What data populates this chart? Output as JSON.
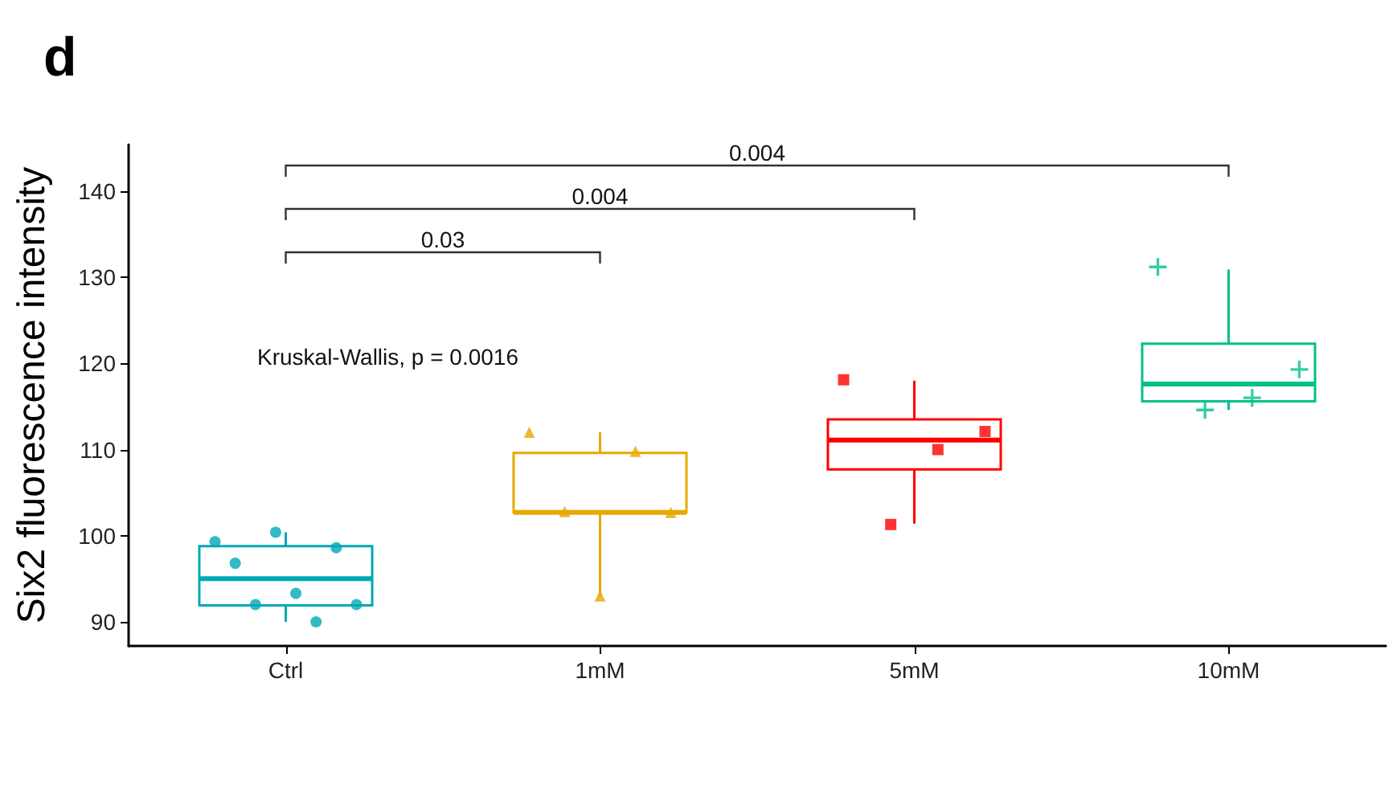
{
  "chart_data": {
    "type": "box",
    "title": "d",
    "ylabel": "Six2 fluorescence intensity",
    "categories": [
      "Ctrl",
      "1mM",
      "5mM",
      "10mM"
    ],
    "ylim": [
      87.2,
      145.4
    ],
    "yticks": [
      90,
      100,
      110,
      120,
      130,
      140
    ],
    "annotations": [
      "0.03",
      "0.004",
      "0.004",
      "Kruskal-Wallis, p = 0.0016"
    ],
    "series": [
      {
        "colors": [
          "#00a9b5",
          "#e7a800",
          "#ff0000",
          "#00c08b"
        ],
        "boxes": [
          {
            "low": 90.0,
            "q1": 91.9,
            "median": 95.0,
            "q3": 98.8,
            "high": 100.4
          },
          {
            "low": 93.0,
            "q1": 102.7,
            "median": 102.7,
            "q3": 109.6,
            "high": 112.0
          },
          {
            "low": 101.4,
            "q1": 107.7,
            "median": 111.1,
            "q3": 113.5,
            "high": 118.0
          },
          {
            "low": 114.6,
            "q1": 115.6,
            "median": 117.6,
            "q3": 122.3,
            "high": 130.9
          }
        ]
      },
      {
        "type": "scatter",
        "color": "#00a9b5",
        "marker": "circle",
        "x": [
          "Ctrl",
          "Ctrl",
          "Ctrl",
          "Ctrl",
          "Ctrl",
          "Ctrl",
          "Ctrl",
          "Ctrl"
        ],
        "values": [
          99.3,
          100.4,
          98.6,
          96.8,
          93.3,
          92.0,
          92.0,
          90.0
        ]
      },
      {
        "type": "scatter",
        "color": "#e7a800",
        "marker": "triangle",
        "x": [
          "1mM",
          "1mM",
          "1mM",
          "1mM",
          "1mM"
        ],
        "values": [
          112.0,
          109.8,
          102.8,
          102.7,
          93.0
        ]
      },
      {
        "type": "scatter",
        "color": "#ff0000",
        "marker": "square",
        "x": [
          "5mM",
          "5mM",
          "5mM",
          "5mM"
        ],
        "values": [
          118.1,
          112.1,
          110.0,
          101.3
        ]
      },
      {
        "type": "scatter",
        "color": "#00c08b",
        "marker": "cross",
        "x": [
          "10mM",
          "10mM",
          "10mM",
          "10mM"
        ],
        "values": [
          131.2,
          119.3,
          116.0,
          114.6
        ]
      }
    ]
  }
}
